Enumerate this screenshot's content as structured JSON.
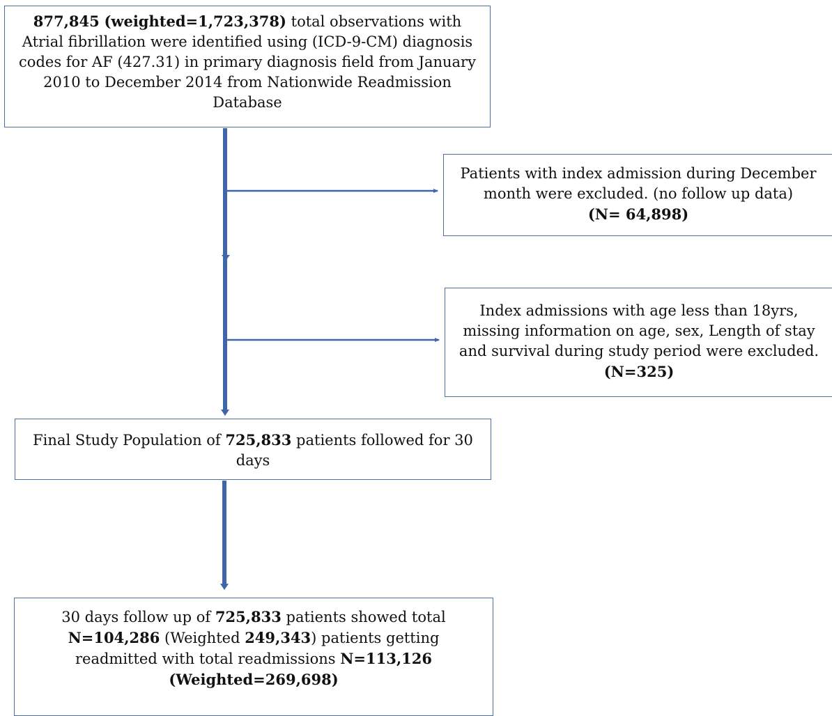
{
  "colors": {
    "border": "#4a6fa5",
    "connector": "#3f66a8"
  },
  "boxes": {
    "top": {
      "count": "877,845",
      "weighted": "(weighted=1,723,378)",
      "line1_rest": " total observations with",
      "line2": "Atrial fibrillation were identified using (ICD-9-CM) diagnosis",
      "line3": "codes for AF (427.31) in primary diagnosis field from January",
      "line4": "2010 to December 2014 from Nationwide Readmission",
      "line5": "Database"
    },
    "exclusion1": {
      "line1": "Patients with index admission during December",
      "line2": "month were excluded. (no follow up data)",
      "n": "(N= 64,898)"
    },
    "exclusion2": {
      "line1": "Index admissions with age less than 18yrs,",
      "line2": "missing information on age, sex, Length of stay",
      "line3": "and survival during study period were excluded.",
      "n": "(N=325)"
    },
    "final": {
      "prefix": "Final Study Population of ",
      "count": "725,833",
      "suffix": " patients followed for 30",
      "line2": "days"
    },
    "followup": {
      "l1_prefix": "30 days follow up of ",
      "l1_count": "725,833",
      "l1_suffix": " patients showed total",
      "l2_n": "N=104,286",
      "l2_mid": " (Weighted ",
      "l2_w": "249,343",
      "l2_suffix": ") patients getting",
      "l3_prefix": "readmitted with total readmissions ",
      "l3_n": "N=113,126",
      "l4": "(Weighted=269,698)"
    }
  }
}
